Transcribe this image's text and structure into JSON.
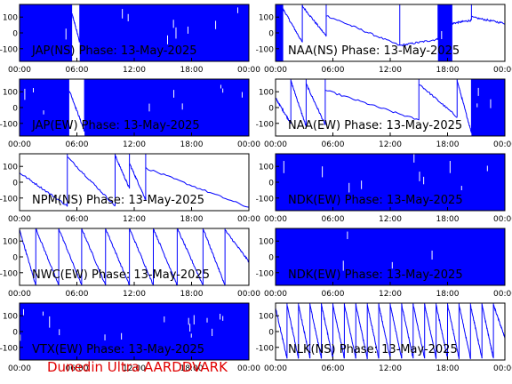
{
  "footer": "Dunedin Ultra AARDDVARK",
  "colors": {
    "trace": "#0000ff",
    "frame": "#000000",
    "label": "#000000",
    "footer": "#e00000"
  },
  "chart_data": [
    {
      "type": "line",
      "title": "JAP(NS) Phase: 13-May-2025",
      "x_ticks": [
        "00:00",
        "06:00",
        "12:00",
        "18:00",
        "00:00"
      ],
      "y_ticks": [
        "100",
        "0",
        "-100"
      ],
      "ylim": [
        -180,
        180
      ],
      "xlim_hours": [
        0,
        24
      ],
      "segments": [
        {
          "t0": 0,
          "t1": 5.5,
          "kind": "noise"
        },
        {
          "t0": 5.5,
          "t1": 6.3,
          "kind": "line",
          "y0": 120,
          "y1": -60
        },
        {
          "t0": 6.3,
          "t1": 24,
          "kind": "noise"
        }
      ]
    },
    {
      "type": "line",
      "title": "NAA(NS) Phase: 13-May-2025",
      "x_ticks": [
        "00:00",
        "06:00",
        "12:00",
        "18:00",
        "00:00"
      ],
      "y_ticks": [
        "100",
        "0",
        "-100"
      ],
      "ylim": [
        -180,
        180
      ],
      "xlim_hours": [
        0,
        24
      ],
      "segments": [
        {
          "t0": 0,
          "t1": 0.8,
          "kind": "noise"
        },
        {
          "t0": 0.8,
          "t1": 2.8,
          "kind": "line",
          "y0": 150,
          "y1": -60
        },
        {
          "t0": 2.8,
          "t1": 5.3,
          "kind": "line",
          "y0": 170,
          "y1": -20
        },
        {
          "t0": 5.3,
          "t1": 13,
          "kind": "line",
          "y0": 110,
          "y1": -80
        },
        {
          "t0": 13,
          "t1": 17,
          "kind": "line",
          "y0": -80,
          "y1": -40
        },
        {
          "t0": 17,
          "t1": 18.5,
          "kind": "noise"
        },
        {
          "t0": 18.5,
          "t1": 20.5,
          "kind": "line",
          "y0": 60,
          "y1": 80
        },
        {
          "t0": 20.5,
          "t1": 24,
          "kind": "line",
          "y0": 100,
          "y1": 60
        }
      ]
    },
    {
      "type": "line",
      "title": "JAP(EW) Phase: 13-May-2025",
      "x_ticks": [
        "00:00",
        "06:00",
        "12:00",
        "18:00",
        "00:00"
      ],
      "y_ticks": [
        "100",
        "0",
        "-100"
      ],
      "ylim": [
        -180,
        180
      ],
      "xlim_hours": [
        0,
        24
      ],
      "segments": [
        {
          "t0": 0,
          "t1": 5.2,
          "kind": "noise"
        },
        {
          "t0": 5.2,
          "t1": 6.8,
          "kind": "line",
          "y0": 110,
          "y1": -150
        },
        {
          "t0": 6.8,
          "t1": 24,
          "kind": "noise"
        }
      ]
    },
    {
      "type": "line",
      "title": "NAA(EW) Phase: 13-May-2025",
      "x_ticks": [
        "00:00",
        "06:00",
        "12:00",
        "18:00",
        "00:00"
      ],
      "y_ticks": [
        "100",
        "0",
        "-100"
      ],
      "ylim": [
        -180,
        180
      ],
      "xlim_hours": [
        0,
        24
      ],
      "segments": [
        {
          "t0": 0,
          "t1": 1.6,
          "kind": "line",
          "y0": 60,
          "y1": -100
        },
        {
          "t0": 1.6,
          "t1": 3.2,
          "kind": "line",
          "y0": 170,
          "y1": -120
        },
        {
          "t0": 3.2,
          "t1": 5.2,
          "kind": "line",
          "y0": 150,
          "y1": -110
        },
        {
          "t0": 5.2,
          "t1": 15,
          "kind": "line",
          "y0": 110,
          "y1": -80
        },
        {
          "t0": 15,
          "t1": 19,
          "kind": "line",
          "y0": 150,
          "y1": -60
        },
        {
          "t0": 19,
          "t1": 20.5,
          "kind": "line",
          "y0": 170,
          "y1": -160
        },
        {
          "t0": 20.5,
          "t1": 22,
          "kind": "noise"
        },
        {
          "t0": 22,
          "t1": 24,
          "kind": "noise"
        }
      ]
    },
    {
      "type": "line",
      "title": "NPM(NS) Phase: 13-May-2025",
      "x_ticks": [
        "00:00",
        "06:00",
        "12:00",
        "18:00",
        "00:00"
      ],
      "y_ticks": [
        "100",
        "0",
        "-100"
      ],
      "ylim": [
        -180,
        180
      ],
      "xlim_hours": [
        0,
        24
      ],
      "segments": [
        {
          "t0": 0,
          "t1": 5,
          "kind": "line",
          "y0": 60,
          "y1": -150
        },
        {
          "t0": 5,
          "t1": 10,
          "kind": "line",
          "y0": 160,
          "y1": -150
        },
        {
          "t0": 10,
          "t1": 11.5,
          "kind": "line",
          "y0": 170,
          "y1": -40
        },
        {
          "t0": 11.5,
          "t1": 13.2,
          "kind": "line",
          "y0": 120,
          "y1": -110
        },
        {
          "t0": 13.2,
          "t1": 24,
          "kind": "line",
          "y0": 90,
          "y1": -160
        }
      ]
    },
    {
      "type": "line",
      "title": "NDK(EW) Phase: 13-May-2025",
      "x_ticks": [
        "00:00",
        "06:00",
        "12:00",
        "18:00",
        "00:00"
      ],
      "y_ticks": [
        "100",
        "0",
        "-100"
      ],
      "ylim": [
        -180,
        180
      ],
      "xlim_hours": [
        0,
        24
      ],
      "segments": [
        {
          "t0": 0,
          "t1": 24,
          "kind": "noise"
        }
      ]
    },
    {
      "type": "line",
      "title": "NWC(EW) Phase: 13-May-2025",
      "x_ticks": [
        "00:00",
        "06:00",
        "12:00",
        "18:00",
        "00:00"
      ],
      "y_ticks": [
        "100",
        "0",
        "-100"
      ],
      "ylim": [
        -180,
        180
      ],
      "xlim_hours": [
        0,
        24
      ],
      "segments": [
        {
          "t0": 0,
          "t1": 1.7,
          "kind": "line",
          "y0": 170,
          "y1": -180
        },
        {
          "t0": 1.7,
          "t1": 4.1,
          "kind": "line",
          "y0": 180,
          "y1": -180
        },
        {
          "t0": 4.1,
          "t1": 6.5,
          "kind": "line",
          "y0": 180,
          "y1": -180
        },
        {
          "t0": 6.5,
          "t1": 9,
          "kind": "line",
          "y0": 180,
          "y1": -180
        },
        {
          "t0": 9,
          "t1": 11.5,
          "kind": "line",
          "y0": 180,
          "y1": -180
        },
        {
          "t0": 11.5,
          "t1": 14,
          "kind": "line",
          "y0": 180,
          "y1": -180
        },
        {
          "t0": 14,
          "t1": 16.5,
          "kind": "line",
          "y0": 180,
          "y1": -180
        },
        {
          "t0": 16.5,
          "t1": 19.2,
          "kind": "line",
          "y0": 180,
          "y1": -180
        },
        {
          "t0": 19.2,
          "t1": 21.5,
          "kind": "line",
          "y0": 180,
          "y1": -180
        },
        {
          "t0": 21.5,
          "t1": 24,
          "kind": "line",
          "y0": 170,
          "y1": -30
        }
      ]
    },
    {
      "type": "line",
      "title": "NDK(EW) Phase: 13-May-2025",
      "x_ticks": [
        "00:00",
        "06:00",
        "12:00",
        "18:00",
        "00:00"
      ],
      "y_ticks": [
        "100",
        "0",
        "-100"
      ],
      "ylim": [
        -180,
        180
      ],
      "xlim_hours": [
        0,
        24
      ],
      "segments": [
        {
          "t0": 0,
          "t1": 24,
          "kind": "noise"
        }
      ]
    },
    {
      "type": "line",
      "title": "VTX(EW) Phase: 13-May-2025",
      "x_ticks": [
        "00:00",
        "06:00",
        "12:00",
        "18:00",
        "00:00"
      ],
      "y_ticks": [
        "100",
        "0",
        "-100"
      ],
      "ylim": [
        -180,
        180
      ],
      "xlim_hours": [
        0,
        24
      ],
      "segments": [
        {
          "t0": 0,
          "t1": 24,
          "kind": "noise"
        }
      ]
    },
    {
      "type": "line",
      "title": "NLK(NS) Phase: 13-May-2025",
      "x_ticks": [
        "00:00",
        "06:00",
        "12:00",
        "18:00",
        "00:00"
      ],
      "y_ticks": [
        "100",
        "0",
        "-100"
      ],
      "ylim": [
        -180,
        180
      ],
      "xlim_hours": [
        0,
        24
      ],
      "segments": [
        {
          "t0": 0,
          "t1": 1.2,
          "kind": "line",
          "y0": 150,
          "y1": -170
        },
        {
          "t0": 1.2,
          "t1": 2.4,
          "kind": "line",
          "y0": 170,
          "y1": -170
        },
        {
          "t0": 2.4,
          "t1": 3.6,
          "kind": "line",
          "y0": 170,
          "y1": -170
        },
        {
          "t0": 3.6,
          "t1": 4.8,
          "kind": "line",
          "y0": 170,
          "y1": -170
        },
        {
          "t0": 4.8,
          "t1": 6,
          "kind": "line",
          "y0": 170,
          "y1": -170
        },
        {
          "t0": 6,
          "t1": 7.2,
          "kind": "line",
          "y0": 170,
          "y1": -170
        },
        {
          "t0": 7.2,
          "t1": 8.4,
          "kind": "line",
          "y0": 170,
          "y1": -170
        },
        {
          "t0": 8.4,
          "t1": 9.6,
          "kind": "line",
          "y0": 170,
          "y1": -170
        },
        {
          "t0": 9.6,
          "t1": 10.8,
          "kind": "line",
          "y0": 170,
          "y1": -170
        },
        {
          "t0": 10.8,
          "t1": 12,
          "kind": "line",
          "y0": 170,
          "y1": -170
        },
        {
          "t0": 12,
          "t1": 13.2,
          "kind": "line",
          "y0": 170,
          "y1": -170
        },
        {
          "t0": 13.2,
          "t1": 14.4,
          "kind": "line",
          "y0": 170,
          "y1": -170
        },
        {
          "t0": 14.4,
          "t1": 15.6,
          "kind": "line",
          "y0": 170,
          "y1": -170
        },
        {
          "t0": 15.6,
          "t1": 16.8,
          "kind": "line",
          "y0": 170,
          "y1": -170
        },
        {
          "t0": 16.8,
          "t1": 18,
          "kind": "line",
          "y0": 170,
          "y1": -170
        },
        {
          "t0": 18,
          "t1": 19.2,
          "kind": "line",
          "y0": 170,
          "y1": -170
        },
        {
          "t0": 19.2,
          "t1": 20.4,
          "kind": "line",
          "y0": 170,
          "y1": -170
        },
        {
          "t0": 20.4,
          "t1": 21.6,
          "kind": "line",
          "y0": 170,
          "y1": -170
        },
        {
          "t0": 21.6,
          "t1": 22.8,
          "kind": "line",
          "y0": 170,
          "y1": -170
        },
        {
          "t0": 22.8,
          "t1": 24,
          "kind": "line",
          "y0": 170,
          "y1": -40
        }
      ]
    }
  ]
}
